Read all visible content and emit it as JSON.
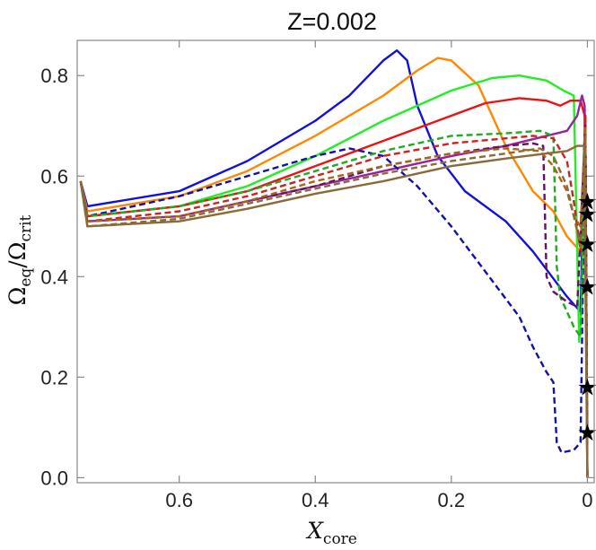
{
  "chart_data": {
    "type": "line",
    "title": "Z=0.002",
    "xlabel": {
      "main": "X",
      "sub": "core"
    },
    "ylabel": {
      "num": "Ω",
      "num_sub": "eq",
      "sep": "/",
      "den": "Ω",
      "den_sub": "crit"
    },
    "xlim": [
      0.75,
      -0.01
    ],
    "ylim": [
      -0.01,
      0.87
    ],
    "xticks": [
      0.6,
      0.4,
      0.2,
      0
    ],
    "xtick_labels": [
      "0.6",
      "0.4",
      "0.2",
      "0"
    ],
    "yticks": [
      0.0,
      0.2,
      0.4,
      0.6,
      0.8
    ],
    "ytick_labels": [
      "0.0",
      "0.2",
      "0.4",
      "0.6",
      "0.8"
    ],
    "grid": false,
    "series": [
      {
        "color": "#1111dd",
        "dash": false,
        "points": [
          [
            0.745,
            0.59
          ],
          [
            0.735,
            0.54
          ],
          [
            0.6,
            0.57
          ],
          [
            0.5,
            0.63
          ],
          [
            0.4,
            0.71
          ],
          [
            0.35,
            0.76
          ],
          [
            0.3,
            0.83
          ],
          [
            0.28,
            0.85
          ],
          [
            0.265,
            0.83
          ],
          [
            0.25,
            0.74
          ],
          [
            0.22,
            0.64
          ],
          [
            0.18,
            0.57
          ],
          [
            0.12,
            0.51
          ],
          [
            0.08,
            0.45
          ],
          [
            0.03,
            0.36
          ],
          [
            0.01,
            0.33
          ],
          [
            0.003,
            0.72
          ],
          [
            0.0,
            0.0
          ]
        ]
      },
      {
        "color": "#ff8800",
        "dash": false,
        "points": [
          [
            0.745,
            0.59
          ],
          [
            0.735,
            0.53
          ],
          [
            0.6,
            0.56
          ],
          [
            0.5,
            0.61
          ],
          [
            0.4,
            0.68
          ],
          [
            0.3,
            0.76
          ],
          [
            0.25,
            0.81
          ],
          [
            0.22,
            0.835
          ],
          [
            0.2,
            0.83
          ],
          [
            0.16,
            0.78
          ],
          [
            0.12,
            0.66
          ],
          [
            0.08,
            0.57
          ],
          [
            0.05,
            0.53
          ],
          [
            0.03,
            0.48
          ],
          [
            0.01,
            0.45
          ],
          [
            0.003,
            0.72
          ],
          [
            0.0,
            0.0
          ]
        ]
      },
      {
        "color": "#22ee22",
        "dash": false,
        "points": [
          [
            0.745,
            0.59
          ],
          [
            0.735,
            0.52
          ],
          [
            0.6,
            0.54
          ],
          [
            0.5,
            0.58
          ],
          [
            0.4,
            0.64
          ],
          [
            0.3,
            0.71
          ],
          [
            0.2,
            0.77
          ],
          [
            0.14,
            0.795
          ],
          [
            0.1,
            0.8
          ],
          [
            0.06,
            0.79
          ],
          [
            0.035,
            0.77
          ],
          [
            0.02,
            0.76
          ],
          [
            0.012,
            0.27
          ],
          [
            0.008,
            0.35
          ],
          [
            0.003,
            0.7
          ],
          [
            0.0,
            0.0
          ]
        ]
      },
      {
        "color": "#ee1111",
        "dash": false,
        "points": [
          [
            0.745,
            0.59
          ],
          [
            0.735,
            0.52
          ],
          [
            0.6,
            0.54
          ],
          [
            0.5,
            0.57
          ],
          [
            0.4,
            0.62
          ],
          [
            0.3,
            0.67
          ],
          [
            0.2,
            0.72
          ],
          [
            0.15,
            0.745
          ],
          [
            0.1,
            0.755
          ],
          [
            0.06,
            0.75
          ],
          [
            0.04,
            0.74
          ],
          [
            0.025,
            0.75
          ],
          [
            0.01,
            0.75
          ],
          [
            0.004,
            0.72
          ],
          [
            0.0,
            0.0
          ]
        ]
      },
      {
        "color": "#992299",
        "dash": false,
        "points": [
          [
            0.745,
            0.59
          ],
          [
            0.735,
            0.51
          ],
          [
            0.6,
            0.52
          ],
          [
            0.5,
            0.55
          ],
          [
            0.4,
            0.58
          ],
          [
            0.3,
            0.61
          ],
          [
            0.2,
            0.64
          ],
          [
            0.12,
            0.66
          ],
          [
            0.06,
            0.68
          ],
          [
            0.03,
            0.69
          ],
          [
            0.015,
            0.72
          ],
          [
            0.008,
            0.76
          ],
          [
            0.004,
            0.74
          ],
          [
            0.0,
            0.0
          ]
        ]
      },
      {
        "color": "#1111aa",
        "dash": true,
        "points": [
          [
            0.745,
            0.59
          ],
          [
            0.735,
            0.52
          ],
          [
            0.6,
            0.56
          ],
          [
            0.5,
            0.6
          ],
          [
            0.4,
            0.64
          ],
          [
            0.35,
            0.655
          ],
          [
            0.3,
            0.64
          ],
          [
            0.25,
            0.58
          ],
          [
            0.2,
            0.5
          ],
          [
            0.15,
            0.41
          ],
          [
            0.1,
            0.32
          ],
          [
            0.08,
            0.26
          ],
          [
            0.06,
            0.21
          ],
          [
            0.05,
            0.19
          ],
          [
            0.045,
            0.07
          ],
          [
            0.038,
            0.05
          ],
          [
            0.02,
            0.055
          ],
          [
            0.01,
            0.07
          ],
          [
            0.003,
            0.72
          ],
          [
            0.0,
            0.0
          ]
        ]
      },
      {
        "color": "#22aa22",
        "dash": true,
        "points": [
          [
            0.745,
            0.59
          ],
          [
            0.735,
            0.52
          ],
          [
            0.6,
            0.54
          ],
          [
            0.5,
            0.57
          ],
          [
            0.4,
            0.61
          ],
          [
            0.3,
            0.65
          ],
          [
            0.2,
            0.68
          ],
          [
            0.12,
            0.685
          ],
          [
            0.07,
            0.69
          ],
          [
            0.05,
            0.68
          ],
          [
            0.045,
            0.42
          ],
          [
            0.04,
            0.36
          ],
          [
            0.03,
            0.33
          ],
          [
            0.02,
            0.3
          ],
          [
            0.01,
            0.28
          ],
          [
            0.003,
            0.7
          ],
          [
            0.0,
            0.0
          ]
        ]
      },
      {
        "color": "#cc2222",
        "dash": true,
        "points": [
          [
            0.745,
            0.59
          ],
          [
            0.735,
            0.51
          ],
          [
            0.6,
            0.53
          ],
          [
            0.5,
            0.56
          ],
          [
            0.4,
            0.6
          ],
          [
            0.3,
            0.64
          ],
          [
            0.2,
            0.665
          ],
          [
            0.12,
            0.675
          ],
          [
            0.08,
            0.68
          ],
          [
            0.05,
            0.675
          ],
          [
            0.03,
            0.63
          ],
          [
            0.02,
            0.55
          ],
          [
            0.01,
            0.45
          ],
          [
            0.003,
            0.72
          ],
          [
            0.0,
            0.0
          ]
        ]
      },
      {
        "color": "#661166",
        "dash": true,
        "points": [
          [
            0.745,
            0.59
          ],
          [
            0.735,
            0.51
          ],
          [
            0.6,
            0.52
          ],
          [
            0.5,
            0.55
          ],
          [
            0.4,
            0.58
          ],
          [
            0.3,
            0.62
          ],
          [
            0.2,
            0.645
          ],
          [
            0.12,
            0.66
          ],
          [
            0.08,
            0.665
          ],
          [
            0.065,
            0.66
          ],
          [
            0.06,
            0.4
          ],
          [
            0.05,
            0.37
          ],
          [
            0.03,
            0.35
          ],
          [
            0.015,
            0.34
          ],
          [
            0.003,
            0.7
          ],
          [
            0.0,
            0.0
          ]
        ]
      },
      {
        "color": "#aa6611",
        "dash": true,
        "points": [
          [
            0.745,
            0.59
          ],
          [
            0.735,
            0.51
          ],
          [
            0.6,
            0.52
          ],
          [
            0.5,
            0.55
          ],
          [
            0.4,
            0.59
          ],
          [
            0.3,
            0.62
          ],
          [
            0.2,
            0.645
          ],
          [
            0.12,
            0.655
          ],
          [
            0.07,
            0.65
          ],
          [
            0.05,
            0.62
          ],
          [
            0.03,
            0.57
          ],
          [
            0.02,
            0.52
          ],
          [
            0.01,
            0.5
          ],
          [
            0.003,
            0.7
          ],
          [
            0.0,
            0.0
          ]
        ]
      },
      {
        "color": "#8b6a3a",
        "dash": true,
        "points": [
          [
            0.745,
            0.59
          ],
          [
            0.735,
            0.5
          ],
          [
            0.6,
            0.515
          ],
          [
            0.5,
            0.545
          ],
          [
            0.4,
            0.575
          ],
          [
            0.3,
            0.605
          ],
          [
            0.2,
            0.63
          ],
          [
            0.12,
            0.645
          ],
          [
            0.07,
            0.655
          ],
          [
            0.05,
            0.64
          ],
          [
            0.03,
            0.58
          ],
          [
            0.02,
            0.52
          ],
          [
            0.01,
            0.46
          ],
          [
            0.003,
            0.68
          ],
          [
            0.0,
            0.0
          ]
        ]
      },
      {
        "color": "#8b6a3a",
        "dash": false,
        "points": [
          [
            0.745,
            0.59
          ],
          [
            0.735,
            0.5
          ],
          [
            0.6,
            0.51
          ],
          [
            0.5,
            0.535
          ],
          [
            0.4,
            0.565
          ],
          [
            0.3,
            0.59
          ],
          [
            0.2,
            0.62
          ],
          [
            0.12,
            0.635
          ],
          [
            0.06,
            0.645
          ],
          [
            0.03,
            0.65
          ],
          [
            0.015,
            0.66
          ],
          [
            0.005,
            0.66
          ],
          [
            0.0,
            0.0
          ]
        ]
      }
    ],
    "markers": {
      "symbol": "★",
      "color": "#000000",
      "x": 0.0,
      "y": [
        0.55,
        0.525,
        0.465,
        0.38,
        0.18,
        0.09
      ]
    }
  }
}
